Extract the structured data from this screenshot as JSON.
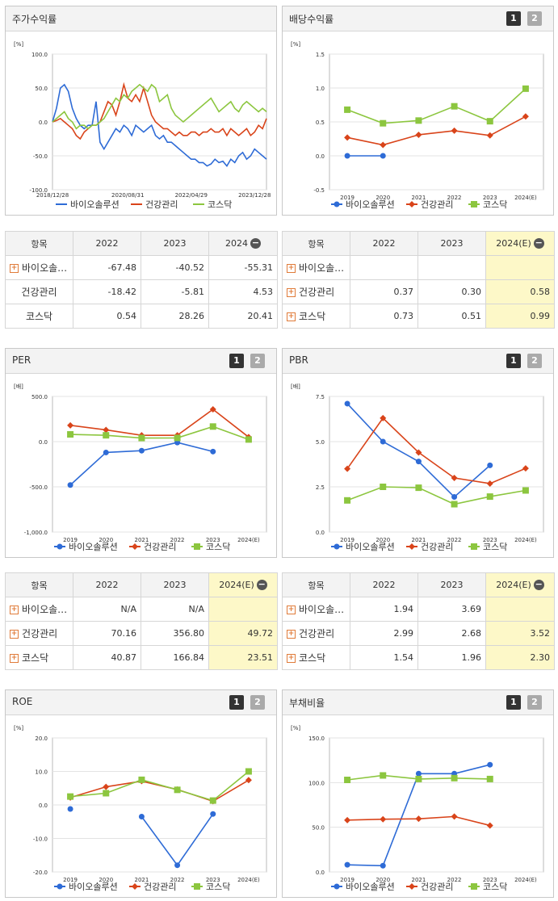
{
  "legend": [
    "바이오솔루션",
    "건강관리",
    "코스닥"
  ],
  "colors": {
    "bio": "#2e6bd6",
    "health": "#d9441a",
    "kosdaq": "#8cc63f"
  },
  "units": {
    "pct": "[%]",
    "times": "[배]"
  },
  "chart_data": [
    {
      "id": "price",
      "type": "line",
      "title": "주가수익률",
      "ylabel": "[%]",
      "ylim": [
        -100,
        100
      ],
      "yticks": [
        "100.0",
        "50.0",
        "0.0",
        "-50.0",
        "-100.0"
      ],
      "xticks": [
        "2018/12/28",
        "2020/08/31",
        "2022/04/29",
        "2023/12/28"
      ],
      "series": [
        {
          "name": "바이오솔루션",
          "values": [
            0,
            20,
            50,
            55,
            45,
            20,
            5,
            -5,
            -10,
            -5,
            -5,
            30,
            -30,
            -40,
            -30,
            -20,
            -10,
            -15,
            -5,
            -10,
            -20,
            -5,
            -10,
            -15,
            -10,
            -5,
            -20,
            -25,
            -20,
            -30,
            -30,
            -35,
            -40,
            -45,
            -50,
            -55,
            -55,
            -60,
            -60,
            -65,
            -62,
            -55,
            -60,
            -58,
            -65,
            -55,
            -60,
            -50,
            -45,
            -55,
            -50,
            -40,
            -45,
            -50,
            -55
          ]
        },
        {
          "name": "건강관리",
          "values": [
            0,
            2,
            5,
            0,
            -5,
            -10,
            -20,
            -25,
            -15,
            -10,
            -5,
            -5,
            0,
            15,
            30,
            25,
            10,
            30,
            55,
            35,
            30,
            40,
            30,
            50,
            30,
            10,
            0,
            -5,
            -10,
            -10,
            -15,
            -20,
            -15,
            -20,
            -20,
            -15,
            -15,
            -20,
            -15,
            -15,
            -10,
            -15,
            -15,
            -10,
            -20,
            -10,
            -15,
            -20,
            -15,
            -10,
            -20,
            -15,
            -5,
            -10,
            5
          ]
        },
        {
          "name": "코스닥",
          "values": [
            0,
            5,
            10,
            15,
            5,
            0,
            -10,
            -5,
            -5,
            -10,
            -5,
            -5,
            0,
            5,
            15,
            25,
            35,
            30,
            40,
            35,
            45,
            50,
            55,
            50,
            45,
            55,
            50,
            30,
            35,
            40,
            20,
            10,
            5,
            0,
            5,
            10,
            15,
            20,
            25,
            30,
            35,
            25,
            15,
            20,
            25,
            30,
            20,
            15,
            25,
            30,
            25,
            20,
            15,
            20,
            15
          ]
        }
      ]
    },
    {
      "id": "dividend",
      "type": "line",
      "title": "배당수익률",
      "ylabel": "[%]",
      "ylim": [
        -0.5,
        1.5
      ],
      "yticks": [
        "1.5",
        "1.0",
        "0.5",
        "0.0",
        "-0.5"
      ],
      "categories": [
        "2019",
        "2020",
        "2021",
        "2022",
        "2023",
        "2024(E)"
      ],
      "series": [
        {
          "name": "바이오솔루션",
          "values": [
            0,
            0,
            null,
            null,
            null,
            null
          ]
        },
        {
          "name": "건강관리",
          "values": [
            0.27,
            0.16,
            0.31,
            0.37,
            0.3,
            0.58
          ]
        },
        {
          "name": "코스닥",
          "values": [
            0.68,
            0.48,
            0.52,
            0.73,
            0.51,
            0.99
          ]
        }
      ]
    },
    {
      "id": "per",
      "type": "line",
      "title": "PER",
      "ylabel": "[배]",
      "ylim": [
        -1000,
        500
      ],
      "yticks": [
        "500.0",
        "0.0",
        "-500.0",
        "-1,000.0"
      ],
      "categories": [
        "2019",
        "2020",
        "2021",
        "2022",
        "2023",
        "2024(E)"
      ],
      "series": [
        {
          "name": "바이오솔루션",
          "values": [
            -480,
            -120,
            -100,
            -10,
            -110,
            null
          ]
        },
        {
          "name": "건강관리",
          "values": [
            180,
            130,
            70,
            70,
            356.8,
            49.72
          ]
        },
        {
          "name": "코스닥",
          "values": [
            80,
            70,
            40,
            40.87,
            166.84,
            23.51
          ]
        }
      ]
    },
    {
      "id": "pbr",
      "type": "line",
      "title": "PBR",
      "ylabel": "[배]",
      "ylim": [
        0,
        7.5
      ],
      "yticks": [
        "7.5",
        "5.0",
        "2.5",
        "0.0"
      ],
      "categories": [
        "2019",
        "2020",
        "2021",
        "2022",
        "2023",
        "2024(E)"
      ],
      "series": [
        {
          "name": "바이오솔루션",
          "values": [
            7.1,
            5.0,
            3.9,
            1.94,
            3.69,
            null
          ]
        },
        {
          "name": "건강관리",
          "values": [
            3.5,
            6.3,
            4.4,
            2.99,
            2.68,
            3.52
          ]
        },
        {
          "name": "코스닥",
          "values": [
            1.75,
            2.5,
            2.45,
            1.54,
            1.96,
            2.3
          ]
        }
      ]
    },
    {
      "id": "roe",
      "type": "line",
      "title": "ROE",
      "ylabel": "[%]",
      "ylim": [
        -20,
        20
      ],
      "yticks": [
        "20.0",
        "10.0",
        "0.0",
        "-10.0",
        "-20.0"
      ],
      "categories": [
        "2019",
        "2020",
        "2021",
        "2022",
        "2023",
        "2024(E)"
      ],
      "series": [
        {
          "name": "바이오솔루션",
          "values": [
            -1.2,
            null,
            -3.5,
            -18,
            -2.7,
            null
          ]
        },
        {
          "name": "건강관리",
          "values": [
            2.2,
            5.4,
            7.1,
            4.6,
            1.1,
            7.4
          ]
        },
        {
          "name": "코스닥",
          "values": [
            2.5,
            3.5,
            7.5,
            4.5,
            1.3,
            10
          ]
        }
      ]
    },
    {
      "id": "debt",
      "type": "line",
      "title": "부채비율",
      "ylabel": "[%]",
      "ylim": [
        0,
        150
      ],
      "yticks": [
        "150.0",
        "100.0",
        "50.0",
        "0.0"
      ],
      "categories": [
        "2019",
        "2020",
        "2021",
        "2022",
        "2023",
        "2024(E)"
      ],
      "series": [
        {
          "name": "바이오솔루션",
          "values": [
            8,
            7,
            110,
            110,
            120,
            null
          ]
        },
        {
          "name": "건강관리",
          "values": [
            58,
            59,
            59.5,
            62,
            52,
            null
          ]
        },
        {
          "name": "코스닥",
          "values": [
            103,
            108,
            104,
            105,
            104,
            null
          ]
        }
      ]
    }
  ],
  "tables": {
    "price": {
      "headers": [
        "항목",
        "2022",
        "2023",
        "2024"
      ],
      "est_col": false,
      "rows": [
        {
          "label": "바이오솔…",
          "plus": true,
          "v": [
            "-67.48",
            "-40.52",
            "-55.31"
          ]
        },
        {
          "label": "건강관리",
          "plus": false,
          "v": [
            "-18.42",
            "-5.81",
            "4.53"
          ]
        },
        {
          "label": "코스닥",
          "plus": false,
          "v": [
            "0.54",
            "28.26",
            "20.41"
          ]
        }
      ]
    },
    "dividend": {
      "headers": [
        "항목",
        "2022",
        "2023",
        "2024(E)"
      ],
      "est_col": true,
      "rows": [
        {
          "label": "바이오솔…",
          "plus": true,
          "v": [
            "",
            "",
            ""
          ]
        },
        {
          "label": "건강관리",
          "plus": true,
          "v": [
            "0.37",
            "0.30",
            "0.58"
          ]
        },
        {
          "label": "코스닥",
          "plus": true,
          "v": [
            "0.73",
            "0.51",
            "0.99"
          ]
        }
      ]
    },
    "per": {
      "headers": [
        "항목",
        "2022",
        "2023",
        "2024(E)"
      ],
      "est_col": true,
      "rows": [
        {
          "label": "바이오솔…",
          "plus": true,
          "v": [
            "N/A",
            "N/A",
            ""
          ]
        },
        {
          "label": "건강관리",
          "plus": true,
          "v": [
            "70.16",
            "356.80",
            "49.72"
          ]
        },
        {
          "label": "코스닥",
          "plus": true,
          "v": [
            "40.87",
            "166.84",
            "23.51"
          ]
        }
      ]
    },
    "pbr": {
      "headers": [
        "항목",
        "2022",
        "2023",
        "2024(E)"
      ],
      "est_col": true,
      "rows": [
        {
          "label": "바이오솔…",
          "plus": true,
          "v": [
            "1.94",
            "3.69",
            ""
          ]
        },
        {
          "label": "건강관리",
          "plus": true,
          "v": [
            "2.99",
            "2.68",
            "3.52"
          ]
        },
        {
          "label": "코스닥",
          "plus": true,
          "v": [
            "1.54",
            "1.96",
            "2.30"
          ]
        }
      ]
    }
  },
  "buttons": {
    "b1": "1",
    "b2": "2"
  }
}
